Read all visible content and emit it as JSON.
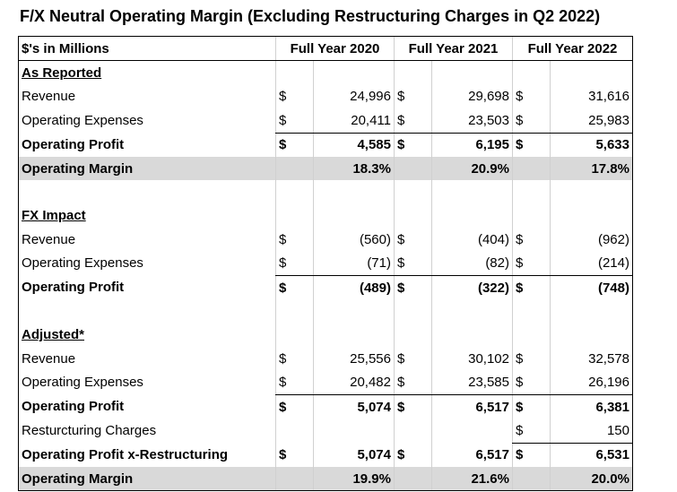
{
  "title": "F/X Neutral Operating Margin (Excluding Restructuring Charges in Q2 2022)",
  "header": {
    "label": "$'s in Millions",
    "years": [
      "Full Year 2020",
      "Full Year 2021",
      "Full Year 2022"
    ]
  },
  "rows": [
    {
      "label": "As Reported",
      "section": true
    },
    {
      "label": "Revenue",
      "cur": [
        "$",
        "$",
        "$"
      ],
      "vals": [
        "24,996",
        "29,698",
        "31,616"
      ]
    },
    {
      "label": "Operating Expenses",
      "cur": [
        "$",
        "$",
        "$"
      ],
      "vals": [
        "20,411",
        "23,503",
        "25,983"
      ],
      "underline": true
    },
    {
      "label": "Operating Profit",
      "cur": [
        "$",
        "$",
        "$"
      ],
      "vals": [
        "4,585",
        "6,195",
        "5,633"
      ],
      "bold": true
    },
    {
      "label": "Operating Margin",
      "cur": [
        "",
        "",
        ""
      ],
      "vals": [
        "18.3%",
        "20.9%",
        "17.8%"
      ],
      "bold": true,
      "shade": true
    },
    {
      "label": "",
      "blank": true
    },
    {
      "label": "FX Impact",
      "section": true
    },
    {
      "label": "Revenue",
      "cur": [
        "$",
        "$",
        "$"
      ],
      "vals": [
        "(560)",
        "(404)",
        "(962)"
      ]
    },
    {
      "label": "Operating Expenses",
      "cur": [
        "$",
        "$",
        "$"
      ],
      "vals": [
        "(71)",
        "(82)",
        "(214)"
      ],
      "underline": true
    },
    {
      "label": "Operating Profit",
      "cur": [
        "$",
        "$",
        "$"
      ],
      "vals": [
        "(489)",
        "(322)",
        "(748)"
      ],
      "bold": true
    },
    {
      "label": "",
      "blank": true
    },
    {
      "label": "Adjusted*",
      "section": true
    },
    {
      "label": "Revenue",
      "cur": [
        "$",
        "$",
        "$"
      ],
      "vals": [
        "25,556",
        "30,102",
        "32,578"
      ]
    },
    {
      "label": "Operating Expenses",
      "cur": [
        "$",
        "$",
        "$"
      ],
      "vals": [
        "20,482",
        "23,585",
        "26,196"
      ],
      "underline": true
    },
    {
      "label": "Operating Profit",
      "cur": [
        "$",
        "$",
        "$"
      ],
      "vals": [
        "5,074",
        "6,517",
        "6,381"
      ],
      "bold": true
    },
    {
      "label": "Resturcturing Charges",
      "cur": [
        "",
        "",
        "$"
      ],
      "vals": [
        "",
        "",
        "150"
      ],
      "underline": true
    },
    {
      "label": "Operating Profit x-Restructuring",
      "cur": [
        "$",
        "$",
        "$"
      ],
      "vals": [
        "5,074",
        "6,517",
        "6,531"
      ],
      "bold": true
    },
    {
      "label": "Operating Margin",
      "cur": [
        "",
        "",
        ""
      ],
      "vals": [
        "19.9%",
        "21.6%",
        "20.0%"
      ],
      "bold": true,
      "shade": true
    }
  ]
}
